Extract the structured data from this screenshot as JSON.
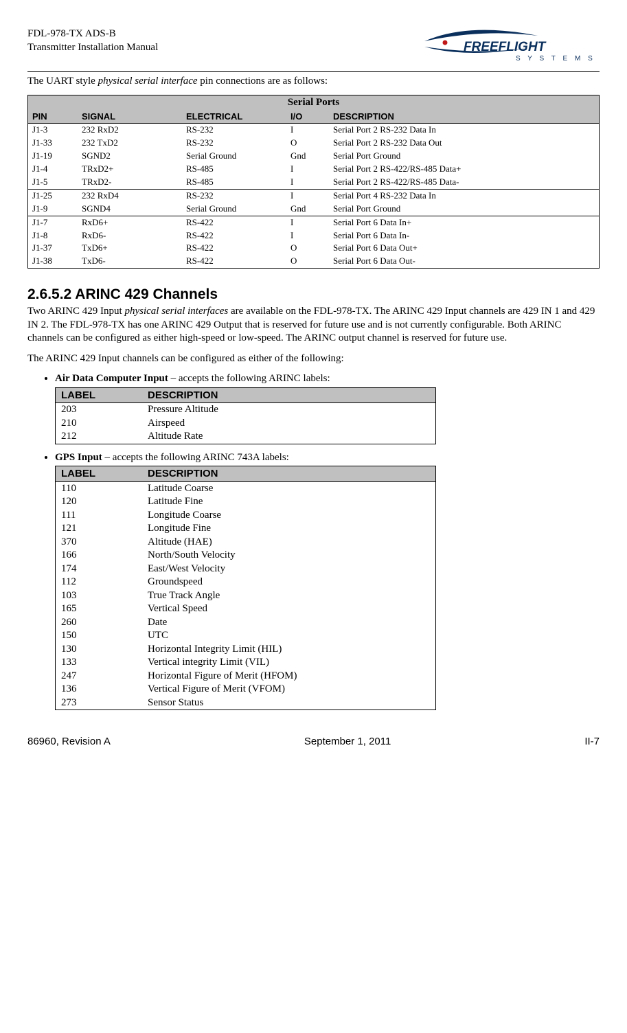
{
  "header": {
    "line1": "FDL-978-TX ADS-B",
    "line2": "Transmitter Installation Manual",
    "logo_text_upper": "FREEFLIGHT",
    "logo_text_lower": "S Y S T E M S",
    "logo_color_swoosh": "#0a2f5c",
    "logo_color_accent": "#c01818"
  },
  "intro": "The UART style physical serial interface pin connections are as follows:",
  "serial_ports": {
    "title": "Serial Ports",
    "columns": [
      "PIN",
      "SIGNAL",
      "ELECTRICAL",
      "I/O",
      "DESCRIPTION"
    ],
    "groups": [
      [
        [
          "J1-3",
          "232 RxD2",
          "RS-232",
          "I",
          "Serial Port 2 RS-232 Data In"
        ],
        [
          "J1-33",
          "232 TxD2",
          "RS-232",
          "O",
          "Serial Port 2 RS-232 Data Out"
        ],
        [
          "J1-19",
          "SGND2",
          "Serial Ground",
          "Gnd",
          "Serial Port Ground"
        ],
        [
          "J1-4",
          "TRxD2+",
          "RS-485",
          "I",
          "Serial Port 2 RS-422/RS-485 Data+"
        ],
        [
          "J1-5",
          "TRxD2-",
          "RS-485",
          "I",
          "Serial Port 2 RS-422/RS-485 Data-"
        ]
      ],
      [
        [
          "J1-25",
          "232 RxD4",
          "RS-232",
          "I",
          "Serial Port 4 RS-232 Data In"
        ],
        [
          "J1-9",
          "SGND4",
          "Serial Ground",
          "Gnd",
          "Serial Port Ground"
        ]
      ],
      [
        [
          "J1-7",
          "RxD6+",
          "RS-422",
          "I",
          "Serial Port 6 Data In+"
        ],
        [
          "J1-8",
          "RxD6-",
          "RS-422",
          "I",
          "Serial Port 6 Data In-"
        ],
        [
          "J1-37",
          "TxD6+",
          "RS-422",
          "O",
          "Serial Port 6 Data Out+"
        ],
        [
          "J1-38",
          "TxD6-",
          "RS-422",
          "O",
          "Serial Port 6 Data Out-"
        ]
      ]
    ]
  },
  "section": {
    "number": "2.6.5.2",
    "title": "ARINC 429 Channels",
    "para1": "Two ARINC 429 Input physical serial interfaces are available on the FDL-978-TX. The ARINC 429 Input channels are 429 IN 1 and 429 IN 2. The FDL-978-TX has one ARINC 429 Output that is reserved for future use and is not currently configurable. Both ARINC channels can be configured as either high-speed or low-speed. The ARINC output channel is reserved for future use.",
    "para2": "The ARINC 429 Input channels can be configured as either of the following:"
  },
  "air_data": {
    "lead_bold": "Air Data Computer Input",
    "lead_rest": " – accepts the following ARINC labels:",
    "columns": [
      "LABEL",
      "DESCRIPTION"
    ],
    "rows": [
      [
        "203",
        "Pressure Altitude"
      ],
      [
        "210",
        "Airspeed"
      ],
      [
        "212",
        "Altitude Rate"
      ]
    ]
  },
  "gps": {
    "lead_bold": "GPS Input",
    "lead_rest": " – accepts the following ARINC 743A labels:",
    "columns": [
      "LABEL",
      "DESCRIPTION"
    ],
    "rows": [
      [
        "110",
        "Latitude Coarse"
      ],
      [
        "120",
        "Latitude Fine"
      ],
      [
        "111",
        "Longitude Coarse"
      ],
      [
        "121",
        "Longitude Fine"
      ],
      [
        "370",
        "Altitude (HAE)"
      ],
      [
        "166",
        "North/South Velocity"
      ],
      [
        "174",
        "East/West Velocity"
      ],
      [
        "112",
        "Groundspeed"
      ],
      [
        "103",
        "True Track Angle"
      ],
      [
        "165",
        "Vertical Speed"
      ],
      [
        "260",
        "Date"
      ],
      [
        "150",
        "UTC"
      ],
      [
        "130",
        "Horizontal Integrity Limit (HIL)"
      ],
      [
        "133",
        "Vertical integrity Limit (VIL)"
      ],
      [
        "247",
        "Horizontal Figure of Merit (HFOM)"
      ],
      [
        "136",
        "Vertical Figure of Merit (VFOM)"
      ],
      [
        "273",
        "Sensor Status"
      ]
    ]
  },
  "footer": {
    "left": "86960, Revision A",
    "center": "September 1, 2011",
    "right": "II-7"
  }
}
